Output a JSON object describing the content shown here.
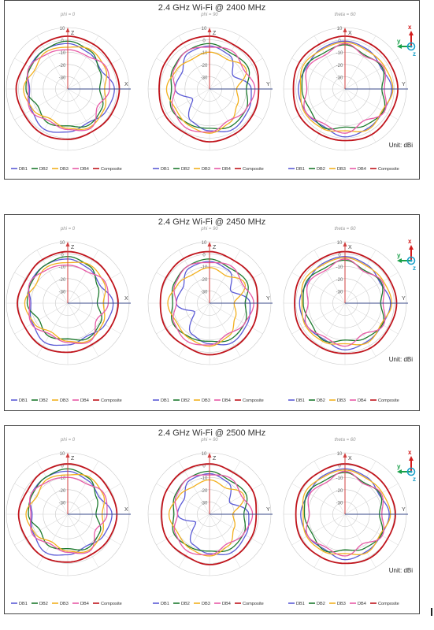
{
  "unit_label": "Unit: dBi",
  "colors": {
    "DB1": "#5b5bd6",
    "DB2": "#1d7a2e",
    "DB3": "#f2b01e",
    "DB4": "#e75aa6",
    "Composite": "#c0141c"
  },
  "chart_data": [
    {
      "type": "polar",
      "title": "2.4 GHz Wi-Fi @ 2400 MHz",
      "radial_ticks": [
        "10",
        "0",
        "-10",
        "-20",
        "-30"
      ],
      "rlim": [
        -40,
        10
      ],
      "legend": [
        "DB1",
        "DB2",
        "DB3",
        "DB4",
        "Composite"
      ],
      "legend_position": "bottom",
      "subplots": [
        {
          "label": "phi = 0",
          "axes": [
            "Z",
            "X"
          ],
          "series": [
            {
              "name": "DB1",
              "r": [
                -3,
                -6,
                -9,
                -2,
                -4,
                -8,
                -5,
                -2,
                -6,
                -9,
                -4,
                -3
              ]
            },
            {
              "name": "DB2",
              "r": [
                -1,
                -4,
                -10,
                -14,
                -8,
                -6,
                -10,
                -8,
                -12,
                -6,
                -5,
                -3
              ]
            },
            {
              "name": "DB3",
              "r": [
                -6,
                -3,
                -5,
                -10,
                -6,
                -4,
                -8,
                -12,
                -7,
                -4,
                -9,
                -5
              ]
            },
            {
              "name": "DB4",
              "r": [
                -8,
                -9,
                -4,
                -6,
                -12,
                -3,
                -7,
                -10,
                -5,
                -8,
                -4,
                -7
              ]
            },
            {
              "name": "Composite",
              "r": [
                3,
                2,
                1,
                2,
                1,
                0,
                1,
                2,
                1,
                2,
                0,
                2
              ]
            }
          ]
        },
        {
          "label": "phi = 90",
          "axes": [
            "Z",
            "Y"
          ],
          "series": [
            {
              "name": "DB1",
              "r": [
                -5,
                -8,
                -18,
                -6,
                -4,
                -2,
                -6,
                -10,
                -24,
                -12,
                -14,
                -6
              ]
            },
            {
              "name": "DB2",
              "r": [
                -3,
                -6,
                -4,
                -10,
                -6,
                -5,
                -8,
                -7,
                -5,
                -9,
                -6,
                -4
              ]
            },
            {
              "name": "DB3",
              "r": [
                -10,
                -12,
                -6,
                -18,
                -14,
                -8,
                -4,
                -6,
                -8,
                -5,
                -9,
                -12
              ]
            },
            {
              "name": "DB4",
              "r": [
                -6,
                -4,
                -8,
                -3,
                -6,
                -10,
                -5,
                -3,
                -6,
                -12,
                -7,
                -4
              ]
            },
            {
              "name": "Composite",
              "r": [
                3,
                1,
                2,
                0,
                1,
                2,
                3,
                1,
                2,
                1,
                2,
                3
              ]
            }
          ]
        },
        {
          "label": "theta = 60",
          "axes": [
            "X",
            "Y"
          ],
          "series": [
            {
              "name": "DB1",
              "r": [
                -1,
                -3,
                -6,
                -2,
                -4,
                -3,
                -1,
                -5,
                -3,
                -2,
                -4,
                -2
              ]
            },
            {
              "name": "DB2",
              "r": [
                -4,
                -8,
                -5,
                -10,
                -4,
                -6,
                -9,
                -4,
                -7,
                -5,
                -3,
                -6
              ]
            },
            {
              "name": "DB3",
              "r": [
                -2,
                -4,
                -3,
                -1,
                -5,
                -2,
                -6,
                -3,
                -2,
                -4,
                -1,
                -3
              ]
            },
            {
              "name": "DB4",
              "r": [
                -3,
                -9,
                -4,
                -8,
                -3,
                -10,
                -4,
                -7,
                -3,
                -9,
                -5,
                -8
              ]
            },
            {
              "name": "Composite",
              "r": [
                3,
                2,
                2,
                3,
                2,
                3,
                2,
                2,
                3,
                2,
                3,
                2
              ]
            }
          ]
        }
      ]
    },
    {
      "type": "polar",
      "title": "2.4 GHz Wi-Fi @ 2450 MHz",
      "radial_ticks": [
        "10",
        "0",
        "-10",
        "-20",
        "-30"
      ],
      "rlim": [
        -40,
        10
      ],
      "legend": [
        "DB1",
        "DB2",
        "DB3",
        "DB4",
        "Composite"
      ],
      "legend_position": "bottom",
      "subplots": [
        {
          "label": "phi = 0",
          "axes": [
            "Z",
            "X"
          ],
          "series": [
            {
              "name": "DB1",
              "r": [
                -4,
                -7,
                -10,
                -3,
                -5,
                -9,
                -6,
                -3,
                -7,
                -10,
                -5,
                -4
              ]
            },
            {
              "name": "DB2",
              "r": [
                -2,
                -5,
                -12,
                -16,
                -9,
                -7,
                -11,
                -9,
                -13,
                -7,
                -6,
                -4
              ]
            },
            {
              "name": "DB3",
              "r": [
                -7,
                -4,
                -6,
                -11,
                -7,
                -5,
                -9,
                -13,
                -8,
                -5,
                -10,
                -6
              ]
            },
            {
              "name": "DB4",
              "r": [
                -9,
                -10,
                -5,
                -7,
                -13,
                -4,
                -8,
                -11,
                -6,
                -9,
                -5,
                -8
              ]
            },
            {
              "name": "Composite",
              "r": [
                2,
                1,
                0,
                1,
                0,
                -1,
                0,
                1,
                0,
                1,
                -1,
                1
              ]
            }
          ]
        },
        {
          "label": "phi = 90",
          "axes": [
            "Z",
            "Y"
          ],
          "series": [
            {
              "name": "DB1",
              "r": [
                -6,
                -9,
                -20,
                -7,
                -5,
                -3,
                -7,
                -11,
                -26,
                -13,
                -15,
                -7
              ]
            },
            {
              "name": "DB2",
              "r": [
                -4,
                -7,
                -5,
                -11,
                -7,
                -6,
                -9,
                -8,
                -6,
                -10,
                -7,
                -5
              ]
            },
            {
              "name": "DB3",
              "r": [
                -11,
                -14,
                -7,
                -20,
                -16,
                -9,
                -5,
                -7,
                -9,
                -6,
                -10,
                -13
              ]
            },
            {
              "name": "DB4",
              "r": [
                -7,
                -5,
                -9,
                -4,
                -7,
                -11,
                -6,
                -4,
                -7,
                -13,
                -8,
                -5
              ]
            },
            {
              "name": "Composite",
              "r": [
                2,
                0,
                1,
                -1,
                0,
                1,
                2,
                0,
                1,
                0,
                1,
                2
              ]
            }
          ]
        },
        {
          "label": "theta = 60",
          "axes": [
            "X",
            "Y"
          ],
          "series": [
            {
              "name": "DB1",
              "r": [
                -2,
                -4,
                -7,
                -3,
                -5,
                -4,
                -2,
                -6,
                -4,
                -3,
                -5,
                -3
              ]
            },
            {
              "name": "DB2",
              "r": [
                -5,
                -9,
                -6,
                -11,
                -5,
                -7,
                -10,
                -5,
                -8,
                -6,
                -4,
                -7
              ]
            },
            {
              "name": "DB3",
              "r": [
                -3,
                -5,
                -4,
                -2,
                -6,
                -3,
                -7,
                -4,
                -3,
                -5,
                -2,
                -4
              ]
            },
            {
              "name": "DB4",
              "r": [
                -4,
                -10,
                -5,
                -9,
                -4,
                -11,
                -5,
                -8,
                -4,
                -10,
                -6,
                -9
              ]
            },
            {
              "name": "Composite",
              "r": [
                2,
                1,
                1,
                2,
                1,
                2,
                1,
                1,
                2,
                1,
                2,
                1
              ]
            }
          ]
        }
      ]
    },
    {
      "type": "polar",
      "title": "2.4 GHz Wi-Fi @ 2500 MHz",
      "radial_ticks": [
        "10",
        "0",
        "-10",
        "-20",
        "-30"
      ],
      "rlim": [
        -40,
        10
      ],
      "legend": [
        "DB1",
        "DB2",
        "DB3",
        "DB4",
        "Composite"
      ],
      "legend_position": "bottom",
      "subplots": [
        {
          "label": "phi = 0",
          "axes": [
            "Z",
            "X"
          ],
          "series": [
            {
              "name": "DB1",
              "r": [
                -5,
                -8,
                -11,
                -4,
                -6,
                -10,
                -7,
                -4,
                -8,
                -11,
                -6,
                -5
              ]
            },
            {
              "name": "DB2",
              "r": [
                -3,
                -6,
                -13,
                -17,
                -10,
                -8,
                -12,
                -10,
                -14,
                -8,
                -7,
                -5
              ]
            },
            {
              "name": "DB3",
              "r": [
                -8,
                -5,
                -7,
                -12,
                -8,
                -6,
                -10,
                -14,
                -9,
                -6,
                -11,
                -7
              ]
            },
            {
              "name": "DB4",
              "r": [
                -10,
                -11,
                -6,
                -8,
                -14,
                -5,
                -9,
                -12,
                -7,
                -10,
                -6,
                -9
              ]
            },
            {
              "name": "Composite",
              "r": [
                1,
                0,
                -1,
                0,
                -1,
                -2,
                -1,
                0,
                -1,
                0,
                -2,
                0
              ]
            }
          ]
        },
        {
          "label": "phi = 90",
          "axes": [
            "Z",
            "Y"
          ],
          "series": [
            {
              "name": "DB1",
              "r": [
                -7,
                -10,
                -21,
                -8,
                -6,
                -4,
                -8,
                -12,
                -27,
                -14,
                -16,
                -8
              ]
            },
            {
              "name": "DB2",
              "r": [
                -5,
                -8,
                -6,
                -12,
                -8,
                -7,
                -10,
                -9,
                -7,
                -11,
                -8,
                -6
              ]
            },
            {
              "name": "DB3",
              "r": [
                -12,
                -15,
                -8,
                -21,
                -17,
                -10,
                -6,
                -8,
                -10,
                -7,
                -11,
                -14
              ]
            },
            {
              "name": "DB4",
              "r": [
                -8,
                -6,
                -10,
                -5,
                -8,
                -12,
                -7,
                -5,
                -8,
                -14,
                -9,
                -6
              ]
            },
            {
              "name": "Composite",
              "r": [
                1,
                -1,
                0,
                -2,
                -1,
                0,
                1,
                -1,
                0,
                -1,
                0,
                1
              ]
            }
          ]
        },
        {
          "label": "theta = 60",
          "axes": [
            "X",
            "Y"
          ],
          "series": [
            {
              "name": "DB1",
              "r": [
                -3,
                -5,
                -8,
                -4,
                -6,
                -5,
                -3,
                -7,
                -5,
                -4,
                -6,
                -4
              ]
            },
            {
              "name": "DB2",
              "r": [
                -6,
                -10,
                -7,
                -12,
                -6,
                -8,
                -11,
                -6,
                -9,
                -7,
                -5,
                -8
              ]
            },
            {
              "name": "DB3",
              "r": [
                -4,
                -6,
                -5,
                -3,
                -7,
                -4,
                -8,
                -5,
                -4,
                -6,
                -3,
                -5
              ]
            },
            {
              "name": "DB4",
              "r": [
                -5,
                -11,
                -6,
                -10,
                -5,
                -12,
                -6,
                -9,
                -5,
                -11,
                -7,
                -10
              ]
            },
            {
              "name": "Composite",
              "r": [
                1,
                0,
                0,
                1,
                0,
                1,
                0,
                0,
                1,
                0,
                1,
                0
              ]
            }
          ]
        }
      ]
    }
  ]
}
